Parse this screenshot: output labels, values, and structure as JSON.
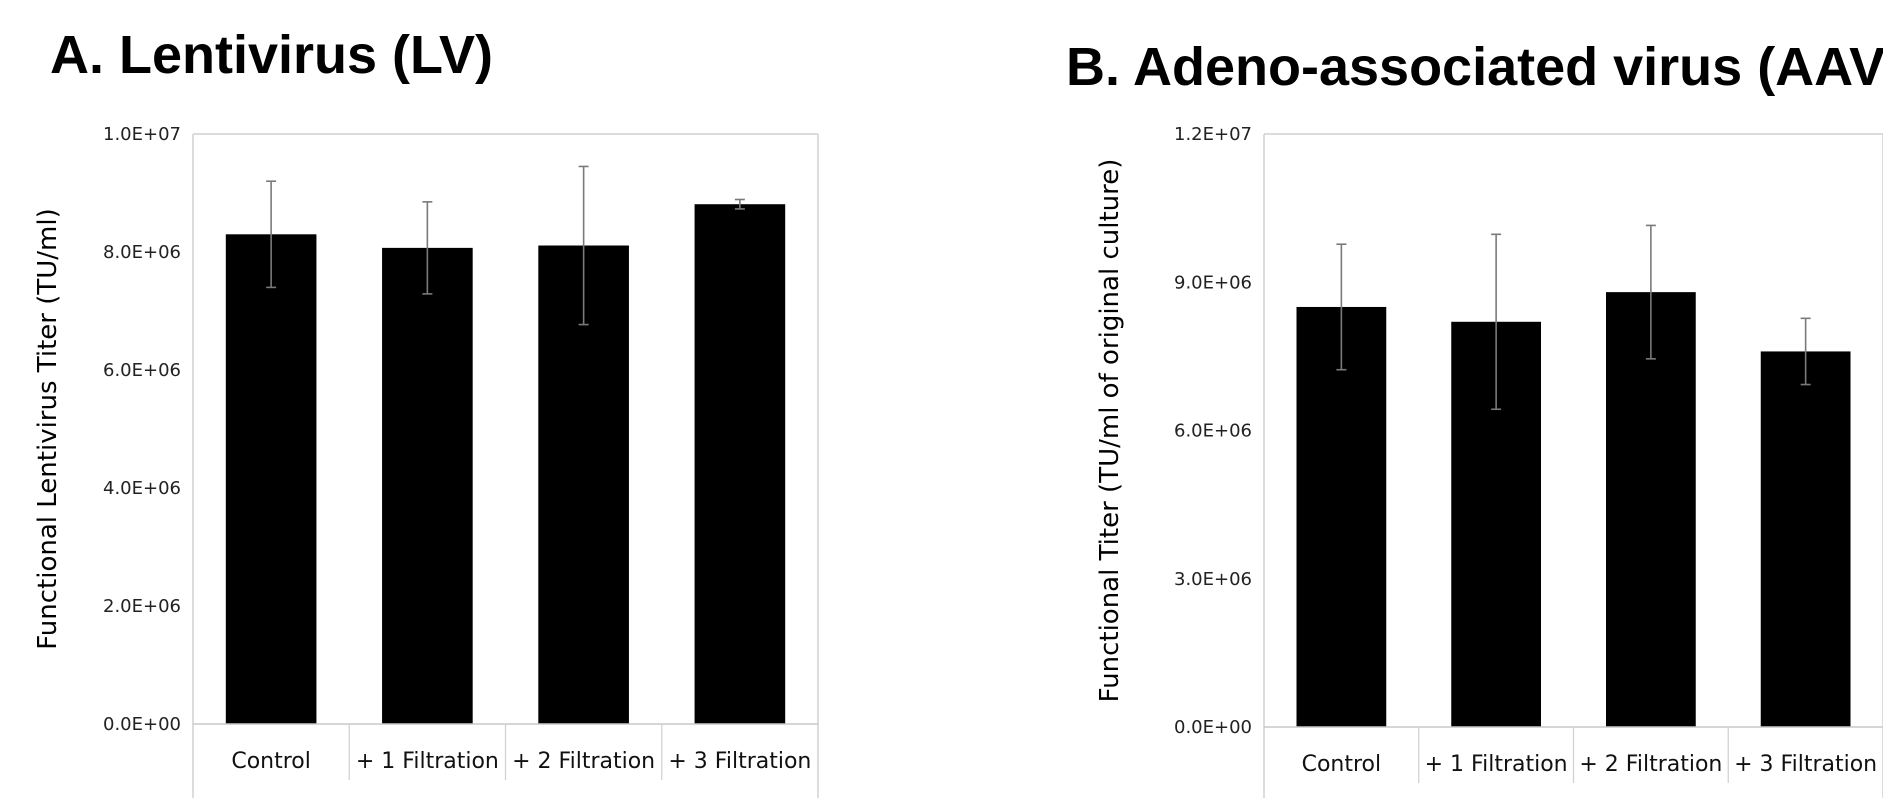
{
  "chart_data": [
    {
      "type": "bar",
      "title": "A.  Lentivirus (LV)",
      "xlabel": "",
      "ylabel": "Functional Lentivirus Titer (TU/ml)",
      "categories": [
        "Control",
        "+ 1 Filtration",
        "+ 2 Filtration",
        "+ 3 Filtration"
      ],
      "values": [
        8300000,
        8070000,
        8110000,
        8810000
      ],
      "error": [
        900000,
        780000,
        1340000,
        80000
      ],
      "ylim": [
        0,
        10000000
      ],
      "yticks": [
        0,
        2000000,
        4000000,
        6000000,
        8000000,
        10000000
      ],
      "ytick_labels": [
        "0.0E+00",
        "2.0E+06",
        "4.0E+06",
        "6.0E+06",
        "8.0E+06",
        "1.0E+07"
      ],
      "grid": false,
      "bar_color": "#000000"
    },
    {
      "type": "bar",
      "title": "B.  Adeno-associated virus (AAV",
      "xlabel": "",
      "ylabel": "Functional Titer (TU/ml of original culture)",
      "categories": [
        "Control",
        "+ 1 Filtration",
        "+ 2 Filtration",
        "+ 3 Filtration"
      ],
      "values": [
        8500000,
        8200000,
        8800000,
        7600000
      ],
      "error": [
        1270000,
        1770000,
        1350000,
        670000
      ],
      "ylim": [
        0,
        12000000
      ],
      "yticks": [
        0,
        3000000,
        6000000,
        9000000,
        12000000
      ],
      "ytick_labels": [
        "0.0E+00",
        "3.0E+06",
        "6.0E+06",
        "9.0E+06",
        "1.2E+07"
      ],
      "grid": false,
      "bar_color": "#000000"
    }
  ]
}
